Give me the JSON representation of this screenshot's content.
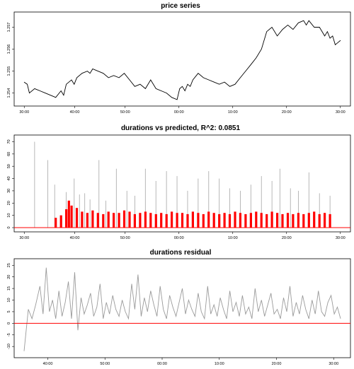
{
  "figure": {
    "background": "#ffffff"
  },
  "chart_data": [
    {
      "type": "line",
      "title": "price series",
      "xlabel": "",
      "ylabel": "",
      "color": "#000000",
      "x_ticks": [
        "30:00",
        "40:00",
        "50:00",
        "00:00",
        "10:00",
        "20:00",
        "30:00"
      ],
      "y_ticks": [
        1.254,
        1.255,
        1.256,
        1.257
      ],
      "y_tick_labels": [
        "1.254",
        "1.255",
        "1.256",
        "1.257"
      ],
      "xlim": [
        0,
        60
      ],
      "ylim": [
        1.2536,
        1.2575
      ],
      "series": [
        {
          "x": [
            0,
            0.6,
            1,
            2,
            3,
            4,
            5,
            6,
            7,
            7.5,
            8,
            9,
            9.5,
            10,
            11,
            12,
            12.5,
            13,
            14,
            15,
            16,
            17,
            18,
            19,
            20,
            21,
            22,
            23,
            24,
            25,
            26,
            27,
            28,
            29,
            29.5,
            30,
            30.5,
            31,
            31.5,
            32,
            33,
            34,
            35,
            36,
            37,
            38,
            39,
            40,
            41,
            42,
            43,
            44,
            45,
            46,
            47,
            48,
            49,
            50,
            51,
            52,
            53,
            53.5,
            54,
            55,
            56,
            57,
            57.5,
            58,
            58.5,
            59,
            59.5,
            60
          ],
          "values": [
            1.2545,
            1.2544,
            1.254,
            1.2542,
            1.2541,
            1.254,
            1.2539,
            1.2538,
            1.2541,
            1.2539,
            1.2544,
            1.2546,
            1.2544,
            1.2547,
            1.2549,
            1.255,
            1.2549,
            1.2551,
            1.255,
            1.2549,
            1.2547,
            1.2548,
            1.2547,
            1.2549,
            1.2546,
            1.2543,
            1.2544,
            1.2542,
            1.2546,
            1.2542,
            1.2541,
            1.254,
            1.2538,
            1.2537,
            1.2542,
            1.2543,
            1.2541,
            1.2544,
            1.2543,
            1.2546,
            1.2549,
            1.2547,
            1.2546,
            1.2545,
            1.2544,
            1.2545,
            1.2543,
            1.2544,
            1.2547,
            1.255,
            1.2553,
            1.2556,
            1.256,
            1.2568,
            1.257,
            1.2566,
            1.2569,
            1.2571,
            1.2569,
            1.2572,
            1.2573,
            1.2571,
            1.2573,
            1.257,
            1.257,
            1.2566,
            1.2568,
            1.2565,
            1.2566,
            1.2562,
            1.2563,
            1.2564
          ]
        }
      ]
    },
    {
      "type": "bar",
      "title": "durations vs predicted, R^2: 0.0851",
      "xlabel": "",
      "ylabel": "",
      "x_ticks": [
        "30:00",
        "40:00",
        "50:00",
        "00:00",
        "10:00",
        "20:00",
        "30:00"
      ],
      "y_ticks": [
        0,
        10,
        20,
        30,
        40,
        50,
        60,
        70
      ],
      "xlim": [
        0,
        60
      ],
      "ylim": [
        0,
        72
      ],
      "reference_line": {
        "y": 0,
        "color": "#ff0000"
      },
      "series": [
        {
          "name": "",
          "color": "#b0b0b0",
          "x": [
            2,
            4.5,
            5.8,
            8,
            9.5,
            10.5,
            11.5,
            12.5,
            14.2,
            15.5,
            17.5,
            19.5,
            21,
            23,
            25,
            27,
            29,
            31,
            33,
            35,
            37,
            39,
            41,
            43,
            45,
            47,
            48.5,
            50.5,
            52,
            54,
            56,
            58
          ],
          "values": [
            70,
            55,
            35,
            29,
            40,
            27,
            28,
            23,
            55,
            22,
            48,
            30,
            26,
            48,
            38,
            46,
            42,
            30,
            40,
            46,
            40,
            32,
            30,
            35,
            42,
            38,
            48,
            32,
            30,
            45,
            28,
            26
          ]
        },
        {
          "name": "",
          "color": "#ff0000",
          "x": [
            6,
            7,
            8,
            8.5,
            9,
            10,
            11,
            12,
            13,
            14,
            15,
            16,
            17,
            18,
            19,
            20,
            21,
            22,
            23,
            24,
            25,
            26,
            27,
            28,
            29,
            30,
            31,
            32,
            33,
            34,
            35,
            36,
            37,
            38,
            39,
            40,
            41,
            42,
            43,
            44,
            45,
            46,
            47,
            48,
            49,
            50,
            51,
            52,
            53,
            54,
            55,
            56,
            57,
            58
          ],
          "values": [
            8,
            10,
            15,
            22,
            18,
            16,
            13,
            12,
            14,
            12,
            11,
            13,
            12,
            12,
            14,
            13,
            11,
            12,
            13,
            12,
            11,
            12,
            11,
            13,
            12,
            12,
            11,
            13,
            12,
            11,
            13,
            12,
            11,
            12,
            11,
            13,
            12,
            11,
            12,
            13,
            12,
            11,
            13,
            12,
            11,
            12,
            11,
            12,
            11,
            12,
            13,
            11,
            12,
            11
          ]
        }
      ]
    },
    {
      "type": "line",
      "title": "durations residual",
      "xlabel": "",
      "ylabel": "",
      "x_ticks": [
        "40:00",
        "50:00",
        "00:00",
        "10:00",
        "20:00",
        "30:00"
      ],
      "y_ticks": [
        -10,
        -5,
        0,
        5,
        10,
        15,
        20,
        25
      ],
      "xlim": [
        0,
        60
      ],
      "ylim": [
        -13,
        26
      ],
      "reference_line": {
        "y": 0,
        "color": "#ff0000"
      },
      "series": [
        {
          "name": "",
          "color": "#9a9a9a",
          "x": [
            0,
            0.8,
            1.5,
            2.2,
            3,
            3.6,
            4.2,
            4.8,
            5.4,
            6,
            6.6,
            7.2,
            7.8,
            8.4,
            9,
            9.6,
            10.2,
            10.8,
            11.4,
            12,
            12.6,
            13.2,
            13.8,
            14.4,
            15,
            15.6,
            16.2,
            16.8,
            17.4,
            18,
            18.6,
            19.2,
            19.8,
            20.4,
            21,
            21.6,
            22.2,
            22.8,
            23.4,
            24,
            24.6,
            25.2,
            25.8,
            26.4,
            27,
            27.6,
            28.2,
            28.8,
            29.4,
            30,
            30.6,
            31.2,
            31.8,
            32.4,
            33,
            33.6,
            34.2,
            34.8,
            35.4,
            36,
            36.6,
            37.2,
            37.8,
            38.4,
            39,
            39.6,
            40.2,
            40.8,
            41.4,
            42,
            42.6,
            43.2,
            43.8,
            44.4,
            45,
            45.6,
            46.2,
            46.8,
            47.4,
            48,
            48.6,
            49.2,
            49.8,
            50.4,
            51,
            51.6,
            52.2,
            52.8,
            53.4,
            54,
            54.6,
            55.2,
            55.8,
            56.4,
            57,
            57.6,
            58.2,
            58.8,
            59.4,
            60
          ],
          "values": [
            -12,
            6,
            2,
            8,
            16,
            4,
            24,
            5,
            10,
            2,
            14,
            3,
            9,
            18,
            2,
            22,
            -3,
            11,
            4,
            8,
            13,
            3,
            7,
            17,
            2,
            9,
            4,
            12,
            6,
            3,
            10,
            5,
            2,
            17,
            6,
            21,
            3,
            11,
            5,
            14,
            8,
            3,
            16,
            6,
            2,
            12,
            7,
            3,
            9,
            15,
            4,
            10,
            6,
            3,
            13,
            5,
            2,
            16,
            4,
            8,
            3,
            11,
            6,
            2,
            14,
            5,
            9,
            3,
            12,
            4,
            7,
            2,
            15,
            5,
            10,
            3,
            8,
            13,
            4,
            6,
            2,
            11,
            5,
            16,
            3,
            9,
            4,
            12,
            6,
            2,
            10,
            4,
            14,
            5,
            3,
            9,
            12,
            4,
            7,
            2
          ]
        }
      ]
    }
  ]
}
